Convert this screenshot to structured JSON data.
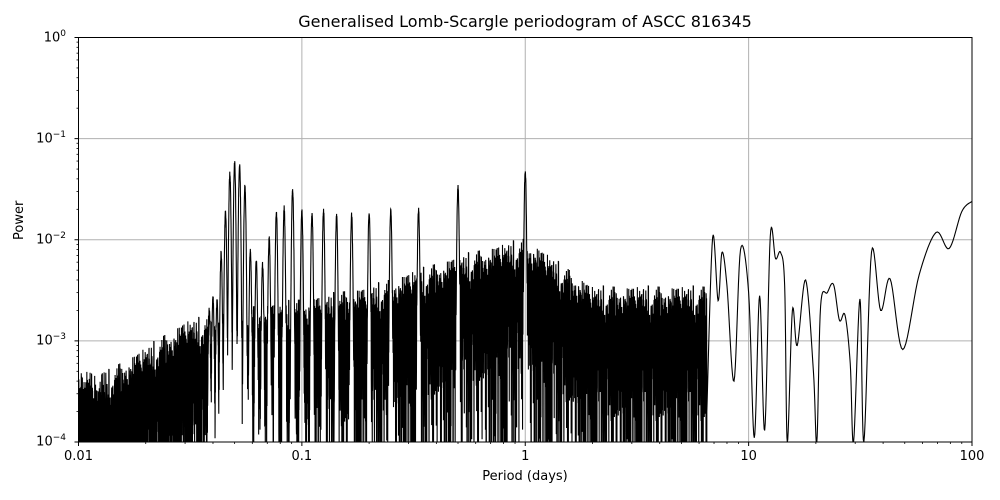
{
  "chart_data": {
    "type": "line",
    "title": "Generalised Lomb-Scargle periodogram of ASCC 816345",
    "xlabel": "Period (days)",
    "ylabel": "Power",
    "xscale": "log",
    "yscale": "log",
    "xlim": [
      0.01,
      100
    ],
    "ylim": [
      0.0001,
      1
    ],
    "grid": true,
    "legend": null,
    "x_ticks": [
      "0.01",
      "0.1",
      "1",
      "10",
      "100"
    ],
    "y_ticks": [
      {
        "base": "10",
        "exp": "0"
      },
      {
        "base": "10",
        "exp": "−1"
      },
      {
        "base": "10",
        "exp": "−2"
      },
      {
        "base": "10",
        "exp": "−3"
      },
      {
        "base": "10",
        "exp": "−4"
      }
    ],
    "line_color": "#000000",
    "grid_color": "#b0b0b0",
    "noise_floor": [
      {
        "period": 0.01,
        "power": 0.00035
      },
      {
        "period": 0.012,
        "power": 0.00025
      },
      {
        "period": 0.02,
        "power": 0.0005
      },
      {
        "period": 0.03,
        "power": 0.0009
      },
      {
        "period": 0.05,
        "power": 0.0012
      },
      {
        "period": 0.1,
        "power": 0.0015
      },
      {
        "period": 0.2,
        "power": 0.002
      },
      {
        "period": 0.5,
        "power": 0.004
      },
      {
        "period": 1.0,
        "power": 0.006
      },
      {
        "period": 2.0,
        "power": 0.002
      },
      {
        "period": 5.0,
        "power": 0.002
      }
    ],
    "alias_peaks": [
      {
        "period": 0.0435,
        "power": 0.008
      },
      {
        "period": 0.0455,
        "power": 0.02
      },
      {
        "period": 0.0476,
        "power": 0.048
      },
      {
        "period": 0.05,
        "power": 0.061
      },
      {
        "period": 0.0526,
        "power": 0.058
      },
      {
        "period": 0.0556,
        "power": 0.036
      },
      {
        "period": 0.0588,
        "power": 0.0085
      },
      {
        "period": 0.0625,
        "power": 0.0068
      },
      {
        "period": 0.0667,
        "power": 0.0062
      },
      {
        "period": 0.0714,
        "power": 0.011
      },
      {
        "period": 0.0769,
        "power": 0.02
      },
      {
        "period": 0.0833,
        "power": 0.022
      },
      {
        "period": 0.0909,
        "power": 0.033
      },
      {
        "period": 0.1,
        "power": 0.021
      },
      {
        "period": 0.111,
        "power": 0.02
      },
      {
        "period": 0.125,
        "power": 0.021
      },
      {
        "period": 0.143,
        "power": 0.019
      },
      {
        "period": 0.167,
        "power": 0.019
      },
      {
        "period": 0.2,
        "power": 0.02
      },
      {
        "period": 0.25,
        "power": 0.021
      },
      {
        "period": 0.333,
        "power": 0.021
      },
      {
        "period": 0.5,
        "power": 0.036
      },
      {
        "period": 1.0,
        "power": 0.052
      },
      {
        "period": 0.0417,
        "power": 0.0027
      },
      {
        "period": 0.04,
        "power": 0.0029
      },
      {
        "period": 0.0385,
        "power": 0.0022
      }
    ],
    "long_period_curve": [
      {
        "period": 6.5,
        "power": 0.0002
      },
      {
        "period": 6.9,
        "power": 0.0105
      },
      {
        "period": 7.3,
        "power": 0.0025
      },
      {
        "period": 7.6,
        "power": 0.0075
      },
      {
        "period": 8.0,
        "power": 0.0035
      },
      {
        "period": 8.6,
        "power": 0.0004
      },
      {
        "period": 9.2,
        "power": 0.008
      },
      {
        "period": 10.0,
        "power": 0.003
      },
      {
        "period": 10.6,
        "power": 0.00011
      },
      {
        "period": 11.2,
        "power": 0.0028
      },
      {
        "period": 11.8,
        "power": 0.00013
      },
      {
        "period": 12.5,
        "power": 0.0108
      },
      {
        "period": 13.2,
        "power": 0.0065
      },
      {
        "period": 13.9,
        "power": 0.0075
      },
      {
        "period": 14.5,
        "power": 0.0035
      },
      {
        "period": 14.9,
        "power": 0.0001
      },
      {
        "period": 15.7,
        "power": 0.002
      },
      {
        "period": 16.5,
        "power": 0.0009
      },
      {
        "period": 18.0,
        "power": 0.004
      },
      {
        "period": 19.5,
        "power": 0.0005
      },
      {
        "period": 20.2,
        "power": 0.0001
      },
      {
        "period": 21.0,
        "power": 0.0022
      },
      {
        "period": 22.5,
        "power": 0.003
      },
      {
        "period": 24.0,
        "power": 0.0036
      },
      {
        "period": 25.5,
        "power": 0.0016
      },
      {
        "period": 27.0,
        "power": 0.0018
      },
      {
        "period": 28.5,
        "power": 0.0006
      },
      {
        "period": 29.5,
        "power": 0.0001
      },
      {
        "period": 31.5,
        "power": 0.0026
      },
      {
        "period": 32.8,
        "power": 0.0001
      },
      {
        "period": 35.5,
        "power": 0.0076
      },
      {
        "period": 39.0,
        "power": 0.002
      },
      {
        "period": 43.0,
        "power": 0.0041
      },
      {
        "period": 49.0,
        "power": 0.00082
      },
      {
        "period": 58.0,
        "power": 0.0045
      },
      {
        "period": 69.0,
        "power": 0.0118
      },
      {
        "period": 79.0,
        "power": 0.0082
      },
      {
        "period": 90.0,
        "power": 0.019
      },
      {
        "period": 100.0,
        "power": 0.024
      }
    ]
  }
}
